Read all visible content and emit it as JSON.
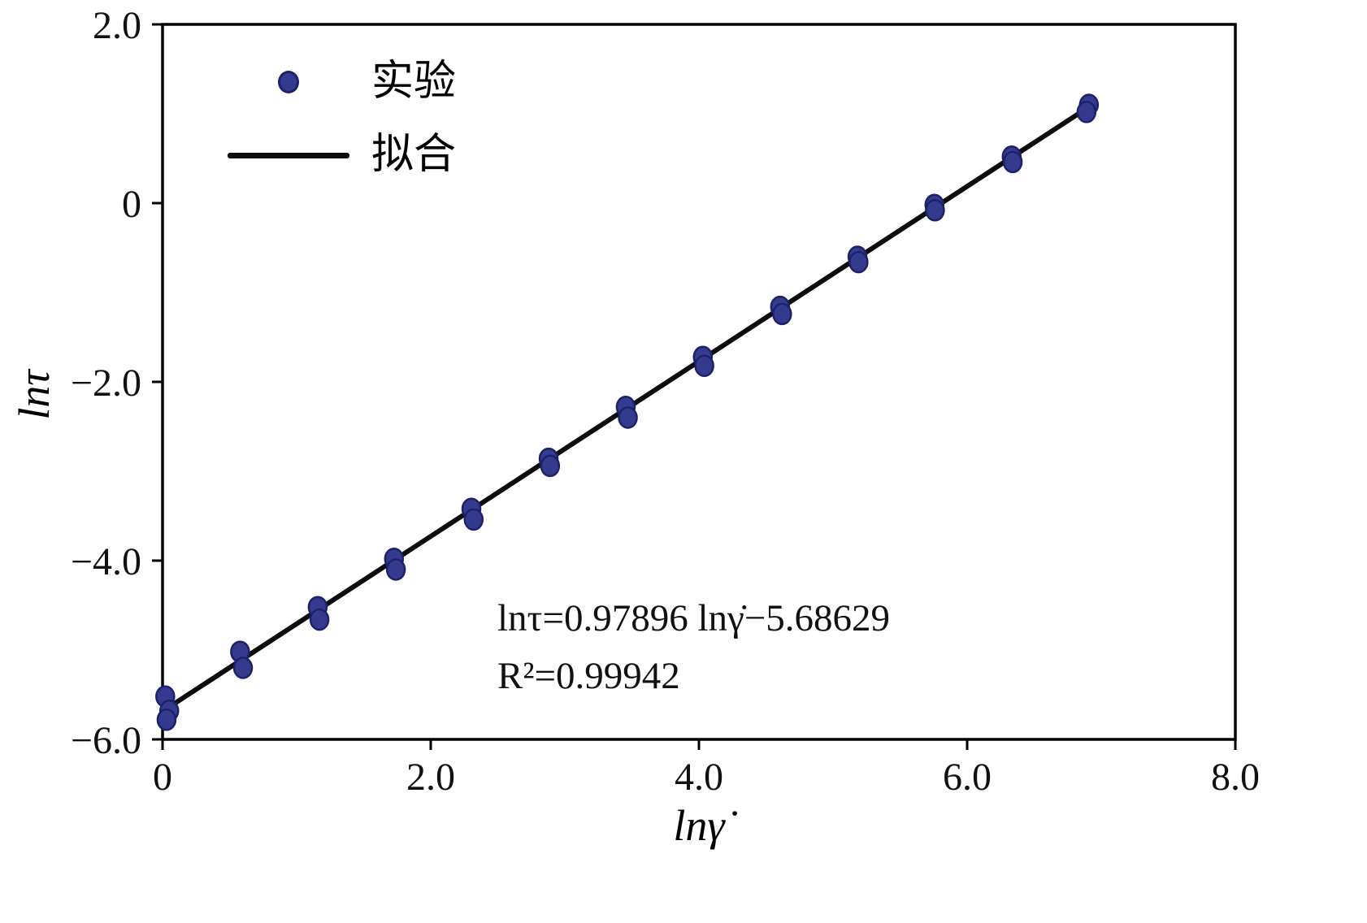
{
  "chart_data": {
    "type": "scatter",
    "title": "",
    "xlabel": "lnγ̇",
    "ylabel": "lnτ",
    "xlim": [
      0,
      8
    ],
    "ylim": [
      -6,
      2
    ],
    "grid": false,
    "legend_position": "inside top-left",
    "x_ticks": {
      "values": [
        0,
        2,
        4,
        6,
        8
      ],
      "labels": [
        "0",
        "2.0",
        "4.0",
        "6.0",
        "8.0"
      ]
    },
    "y_ticks": {
      "values": [
        2,
        0,
        -2,
        -4,
        -6
      ],
      "labels": [
        "2.0",
        "0",
        "−2.0",
        "−4.0",
        "−6.0"
      ]
    },
    "series": [
      {
        "name": "实验",
        "type": "scatter",
        "points": [
          [
            0.02,
            -5.52
          ],
          [
            0.05,
            -5.68
          ],
          [
            0.03,
            -5.78
          ],
          [
            0.578,
            -5.02
          ],
          [
            0.6,
            -5.2
          ],
          [
            1.157,
            -4.52
          ],
          [
            1.17,
            -4.66
          ],
          [
            1.726,
            -3.98
          ],
          [
            1.74,
            -4.1
          ],
          [
            2.303,
            -3.42
          ],
          [
            2.32,
            -3.54
          ],
          [
            2.879,
            -2.86
          ],
          [
            2.89,
            -2.94
          ],
          [
            3.454,
            -2.28
          ],
          [
            3.47,
            -2.4
          ],
          [
            4.029,
            -1.72
          ],
          [
            4.04,
            -1.82
          ],
          [
            4.605,
            -1.16
          ],
          [
            4.62,
            -1.24
          ],
          [
            5.182,
            -0.6
          ],
          [
            5.19,
            -0.66
          ],
          [
            5.756,
            -0.02
          ],
          [
            5.76,
            -0.08
          ],
          [
            6.332,
            0.52
          ],
          [
            6.34,
            0.46
          ],
          [
            6.908,
            1.1
          ],
          [
            6.89,
            1.02
          ]
        ]
      },
      {
        "name": "拟合",
        "type": "line",
        "slope": 0.97896,
        "intercept": -5.68629,
        "x_start": 0,
        "x_end": 6.908
      }
    ],
    "annotations": [
      "lnτ=0.97896 lnγ̇−5.68629",
      "R²=0.99942"
    ],
    "colors": {
      "marker_fill": "#343b8f",
      "marker_stroke": "#1d2168",
      "line": "#0d0d0d",
      "axis": "#000000",
      "text": "#111111"
    }
  }
}
